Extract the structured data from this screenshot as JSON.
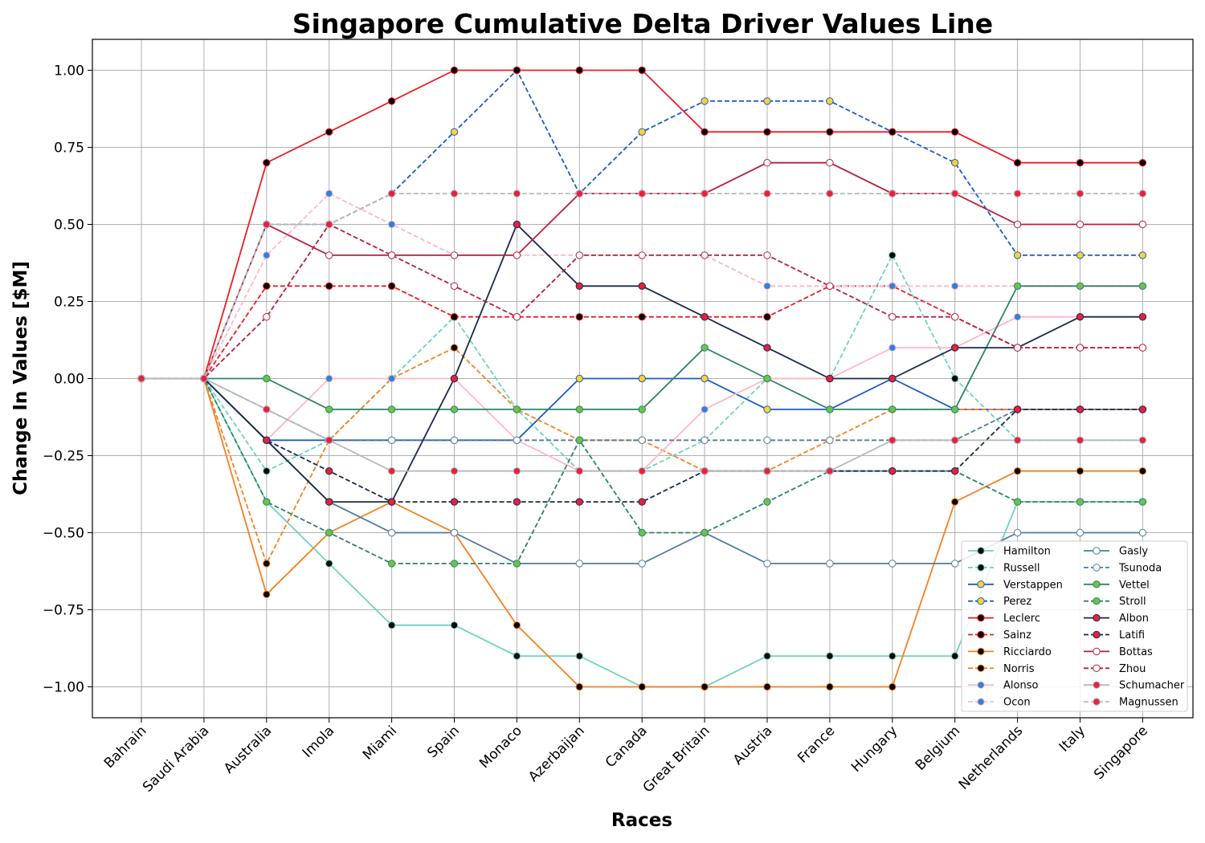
{
  "chart_data": {
    "type": "line",
    "title": "Singapore Cumulative Delta Driver Values Line",
    "xlabel": "Races",
    "ylabel": "Change In Values [$M]",
    "ylim": [
      -1.1,
      1.1
    ],
    "yticks": [
      1.0,
      0.75,
      0.5,
      0.25,
      0.0,
      -0.25,
      -0.5,
      -0.75,
      -1.0
    ],
    "ytick_labels": [
      "1.00",
      "0.75",
      "0.50",
      "0.25",
      "0.00",
      "−0.25",
      "−0.50",
      "−0.75",
      "−1.00"
    ],
    "grid": true,
    "legend_position": "bottom-right",
    "legend_columns": 2,
    "categories": [
      "Bahrain",
      "Saudi Arabia",
      "Australia",
      "Imola",
      "Miami",
      "Spain",
      "Monaco",
      "Azerbaijan",
      "Canada",
      "Great Britain",
      "Austria",
      "France",
      "Hungary",
      "Belgium",
      "Netherlands",
      "Italy",
      "Singapore"
    ],
    "series": [
      {
        "name": "Hamilton",
        "color": "#6cd3bf",
        "dash": "solid",
        "marker": "#000000",
        "values": [
          0,
          0,
          -0.4,
          -0.6,
          -0.8,
          -0.8,
          -0.9,
          -0.9,
          -1.0,
          -1.0,
          -0.9,
          -0.9,
          -0.9,
          -0.9,
          -0.4,
          -0.4,
          -0.4
        ]
      },
      {
        "name": "Russell",
        "color": "#6cd3bf",
        "dash": "dashed",
        "marker": "#000000",
        "values": [
          0,
          0,
          -0.3,
          -0.2,
          0.0,
          0.2,
          -0.1,
          -0.3,
          -0.3,
          -0.2,
          0.0,
          0.0,
          0.4,
          0.0,
          -0.2,
          -0.2,
          -0.2
        ]
      },
      {
        "name": "Verstappen",
        "color": "#1e5bc6",
        "dash": "solid",
        "marker": "#ffd12e",
        "values": [
          0,
          0,
          -0.2,
          -0.2,
          -0.2,
          -0.2,
          -0.2,
          0.0,
          0.0,
          0.0,
          -0.1,
          -0.1,
          0.0,
          -0.1,
          -0.1,
          -0.1,
          -0.1
        ]
      },
      {
        "name": "Perez",
        "color": "#1e5bc6",
        "dash": "dashed",
        "marker": "#ffd12e",
        "values": [
          0,
          0,
          0.5,
          0.5,
          0.6,
          0.8,
          1.0,
          0.6,
          0.8,
          0.9,
          0.9,
          0.9,
          0.8,
          0.7,
          0.4,
          0.4,
          0.4
        ]
      },
      {
        "name": "Leclerc",
        "color": "#ed1c24",
        "dash": "solid",
        "marker": "#000000",
        "values": [
          0,
          0,
          0.7,
          0.8,
          0.9,
          1.0,
          1.0,
          1.0,
          1.0,
          0.8,
          0.8,
          0.8,
          0.8,
          0.8,
          0.7,
          0.7,
          0.7
        ]
      },
      {
        "name": "Sainz",
        "color": "#ed1c24",
        "dash": "dashed",
        "marker": "#000000",
        "values": [
          0,
          0,
          0.3,
          0.3,
          0.3,
          0.2,
          0.2,
          0.2,
          0.2,
          0.2,
          0.2,
          0.3,
          0.3,
          0.2,
          0.1,
          0.1,
          0.1
        ]
      },
      {
        "name": "Ricciardo",
        "color": "#f58020",
        "dash": "solid",
        "marker": "#000000",
        "values": [
          0,
          0,
          -0.7,
          -0.5,
          -0.4,
          -0.5,
          -0.8,
          -1.0,
          -1.0,
          -1.0,
          -1.0,
          -1.0,
          -1.0,
          -0.4,
          -0.3,
          -0.3,
          -0.3
        ]
      },
      {
        "name": "Norris",
        "color": "#f58020",
        "dash": "dashed",
        "marker": "#000000",
        "values": [
          0,
          0,
          -0.6,
          -0.2,
          0.0,
          0.1,
          -0.1,
          -0.2,
          -0.2,
          -0.3,
          -0.3,
          -0.2,
          -0.1,
          -0.1,
          -0.1,
          -0.1,
          -0.1
        ]
      },
      {
        "name": "Alonso",
        "color": "#ffb6c8",
        "dash": "solid",
        "marker": "#2d82dc",
        "values": [
          0,
          0,
          -0.2,
          0.0,
          0.0,
          0.0,
          -0.2,
          -0.3,
          -0.3,
          -0.1,
          0.0,
          0.0,
          0.1,
          0.1,
          0.2,
          0.2,
          0.2
        ]
      },
      {
        "name": "Ocon",
        "color": "#ffb6c8",
        "dash": "dashed",
        "marker": "#2d82dc",
        "values": [
          0,
          0,
          0.4,
          0.6,
          0.5,
          0.4,
          0.4,
          0.4,
          0.4,
          0.4,
          0.3,
          0.3,
          0.3,
          0.3,
          0.3,
          0.3,
          0.3
        ]
      },
      {
        "name": "Gasly",
        "color": "#4e7c9b",
        "dash": "solid",
        "marker": "#ffffff",
        "values": [
          0,
          0,
          -0.2,
          -0.4,
          -0.5,
          -0.5,
          -0.6,
          -0.6,
          -0.6,
          -0.5,
          -0.6,
          -0.6,
          -0.6,
          -0.6,
          -0.5,
          -0.5,
          -0.5
        ]
      },
      {
        "name": "Tsunoda",
        "color": "#4e7c9b",
        "dash": "dashed",
        "marker": "#ffffff",
        "values": [
          0,
          0,
          -0.1,
          -0.2,
          -0.2,
          -0.2,
          -0.2,
          -0.2,
          -0.2,
          -0.2,
          -0.2,
          -0.2,
          -0.2,
          -0.2,
          -0.1,
          -0.1,
          -0.1
        ]
      },
      {
        "name": "Vettel",
        "color": "#2d826d",
        "dash": "solid",
        "marker": "#6cc24a",
        "values": [
          0,
          0,
          0.0,
          -0.1,
          -0.1,
          -0.1,
          -0.1,
          -0.1,
          -0.1,
          0.1,
          0.0,
          -0.1,
          -0.1,
          -0.1,
          0.3,
          0.3,
          0.3
        ]
      },
      {
        "name": "Stroll",
        "color": "#2d826d",
        "dash": "dashed",
        "marker": "#6cc24a",
        "values": [
          0,
          0,
          -0.4,
          -0.5,
          -0.6,
          -0.6,
          -0.6,
          -0.2,
          -0.5,
          -0.5,
          -0.4,
          -0.3,
          -0.3,
          -0.3,
          -0.4,
          -0.4,
          -0.4
        ]
      },
      {
        "name": "Albon",
        "color": "#1b2a4a",
        "dash": "solid",
        "marker": "#e8203f",
        "values": [
          0,
          0,
          -0.2,
          -0.4,
          -0.4,
          0.0,
          0.5,
          0.3,
          0.3,
          0.2,
          0.1,
          0.0,
          0.0,
          0.1,
          0.1,
          0.2,
          0.2
        ]
      },
      {
        "name": "Latifi",
        "color": "#1b2a4a",
        "dash": "dashed",
        "marker": "#e8203f",
        "values": [
          0,
          0,
          -0.2,
          -0.3,
          -0.4,
          -0.4,
          -0.4,
          -0.4,
          -0.4,
          -0.3,
          -0.3,
          -0.3,
          -0.3,
          -0.3,
          -0.1,
          -0.1,
          -0.1
        ]
      },
      {
        "name": "Bottas",
        "color": "#b4203f",
        "dash": "solid",
        "marker": "#ffffff",
        "values": [
          0,
          0,
          0.5,
          0.4,
          0.4,
          0.4,
          0.4,
          0.6,
          0.6,
          0.6,
          0.7,
          0.7,
          0.6,
          0.6,
          0.5,
          0.5,
          0.5
        ]
      },
      {
        "name": "Zhou",
        "color": "#b4203f",
        "dash": "dashed",
        "marker": "#ffffff",
        "values": [
          0,
          0,
          0.2,
          0.5,
          0.4,
          0.3,
          0.2,
          0.4,
          0.4,
          0.4,
          0.4,
          0.3,
          0.2,
          0.2,
          0.1,
          0.1,
          0.1
        ]
      },
      {
        "name": "Schumacher",
        "color": "#b6babd",
        "dash": "solid",
        "marker": "#e8203f",
        "values": [
          0,
          0,
          -0.1,
          -0.2,
          -0.3,
          -0.3,
          -0.3,
          -0.3,
          -0.3,
          -0.3,
          -0.3,
          -0.3,
          -0.2,
          -0.2,
          -0.2,
          -0.2,
          -0.2
        ]
      },
      {
        "name": "Magnussen",
        "color": "#b6babd",
        "dash": "dashed",
        "marker": "#e8203f",
        "values": [
          0,
          0,
          0.5,
          0.5,
          0.6,
          0.6,
          0.6,
          0.6,
          0.6,
          0.6,
          0.6,
          0.6,
          0.6,
          0.6,
          0.6,
          0.6,
          0.6
        ]
      }
    ]
  }
}
